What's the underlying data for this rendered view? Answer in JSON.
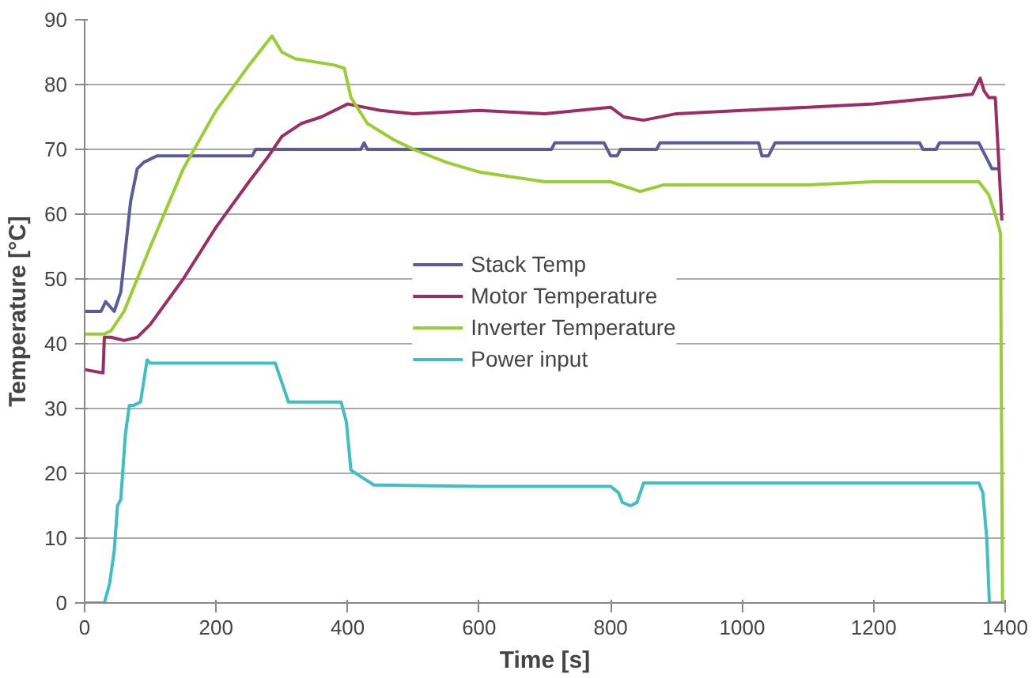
{
  "chart_data": {
    "type": "line",
    "xlabel": "Time [s]",
    "ylabel": "Temperature [°C]",
    "xlim": [
      0,
      1400
    ],
    "ylim": [
      0,
      90
    ],
    "xticks": [
      0,
      200,
      400,
      600,
      800,
      1000,
      1200,
      1400
    ],
    "yticks": [
      0,
      10,
      20,
      30,
      40,
      50,
      60,
      70,
      80,
      90
    ],
    "grid": "y",
    "legend": "center",
    "line_style": "solid",
    "marker": "none",
    "series": [
      {
        "name": "Stack Temp",
        "color": "#5b5b9b",
        "x": [
          0,
          25,
          32,
          45,
          55,
          70,
          80,
          90,
          110,
          150,
          255,
          260,
          420,
          425,
          430,
          710,
          715,
          790,
          800,
          810,
          815,
          870,
          875,
          1025,
          1030,
          1040,
          1050,
          1270,
          1275,
          1295,
          1300,
          1360,
          1370,
          1380,
          1390
        ],
        "values": [
          45,
          45,
          46.5,
          45,
          48,
          62,
          67,
          68,
          69,
          69,
          69,
          70,
          70,
          71,
          70,
          70,
          71,
          71,
          69,
          69,
          70,
          70,
          71,
          71,
          69,
          69,
          71,
          71,
          70,
          70,
          71,
          71,
          69,
          67,
          67
        ]
      },
      {
        "name": "Motor Temperature",
        "color": "#9b2d62",
        "x": [
          0,
          28,
          30,
          40,
          60,
          80,
          100,
          150,
          200,
          250,
          280,
          300,
          330,
          360,
          400,
          450,
          500,
          600,
          700,
          800,
          820,
          850,
          900,
          1000,
          1100,
          1200,
          1300,
          1350,
          1362,
          1368,
          1375,
          1385,
          1395
        ],
        "values": [
          36,
          35.5,
          41,
          41,
          40.5,
          41,
          43,
          50,
          58,
          65,
          69,
          72,
          74,
          75,
          77,
          76,
          75.5,
          76,
          75.5,
          76.5,
          75,
          74.5,
          75.5,
          76,
          76.5,
          77,
          78,
          78.5,
          81,
          79,
          78,
          78,
          59
        ]
      },
      {
        "name": "Inverter Temperature",
        "color": "#9acd32",
        "x": [
          0,
          30,
          40,
          60,
          80,
          100,
          150,
          200,
          250,
          285,
          300,
          320,
          380,
          395,
          405,
          430,
          470,
          500,
          550,
          600,
          700,
          800,
          830,
          845,
          880,
          1000,
          1100,
          1200,
          1300,
          1360,
          1375,
          1385,
          1393,
          1396
        ],
        "values": [
          41.5,
          41.5,
          42,
          45,
          50,
          55,
          67,
          76,
          83,
          87.5,
          85,
          84,
          83,
          82.5,
          78,
          74,
          71.5,
          70,
          68,
          66.5,
          65,
          65,
          64,
          63.5,
          64.5,
          64.5,
          64.5,
          65,
          65,
          65,
          63,
          60,
          57,
          0
        ]
      },
      {
        "name": "Power input",
        "color": "#3fbfc4",
        "x": [
          0,
          30,
          38,
          45,
          50,
          55,
          62,
          68,
          75,
          85,
          95,
          100,
          200,
          290,
          300,
          310,
          390,
          398,
          405,
          420,
          440,
          600,
          800,
          812,
          818,
          830,
          840,
          850,
          1000,
          1200,
          1360,
          1366,
          1372,
          1376,
          1395
        ],
        "values": [
          0,
          0,
          3,
          8,
          15,
          16,
          26,
          30.5,
          30.5,
          31,
          37.5,
          37,
          37,
          37,
          34,
          31,
          31,
          28,
          20.5,
          19.5,
          18.2,
          18,
          18,
          17,
          15.5,
          15,
          15.5,
          18.5,
          18.5,
          18.5,
          18.5,
          17,
          10,
          0,
          0
        ]
      }
    ]
  }
}
